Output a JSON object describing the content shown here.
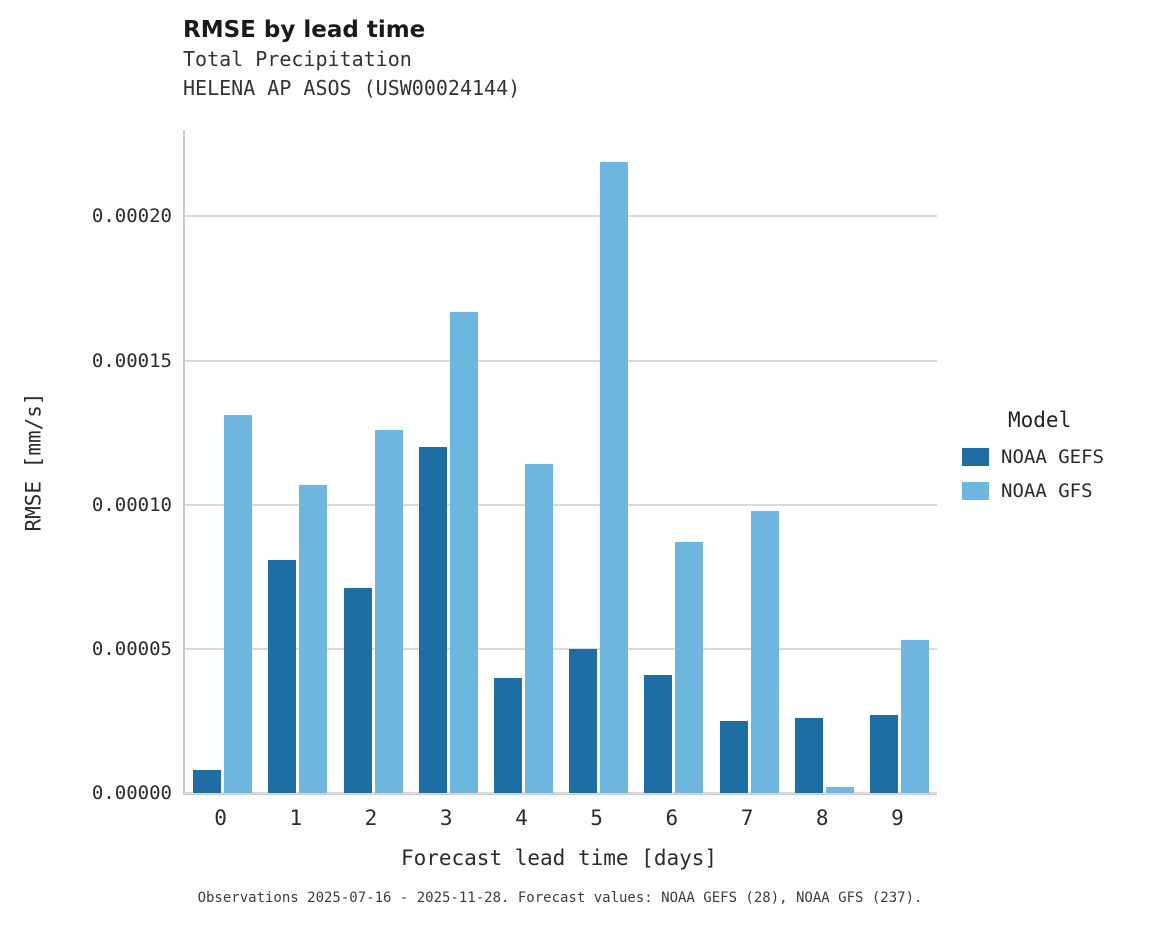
{
  "header": {
    "title": "RMSE by lead time",
    "subtitle1": "Total Precipitation",
    "subtitle2": "HELENA AP ASOS (USW00024144)"
  },
  "chart_data": {
    "type": "bar",
    "title": "RMSE by lead time",
    "subtitle": "Total Precipitation",
    "station": "HELENA AP ASOS (USW00024144)",
    "xlabel": "Forecast lead time [days]",
    "ylabel": "RMSE [mm/s]",
    "categories": [
      "0",
      "1",
      "2",
      "3",
      "4",
      "5",
      "6",
      "7",
      "8",
      "9"
    ],
    "yticks": [
      0,
      5e-05,
      0.0001,
      0.00015,
      0.0002
    ],
    "ytick_labels": [
      "0.00000",
      "0.00005",
      "0.00010",
      "0.00015",
      "0.00020"
    ],
    "ylim": [
      0,
      0.00023
    ],
    "grid": true,
    "legend_title": "Model",
    "legend_position": "right",
    "series": [
      {
        "name": "NOAA GEFS",
        "color": "#1c6ea4",
        "values": [
          8e-06,
          8.1e-05,
          7.1e-05,
          0.00012,
          4e-05,
          5e-05,
          4.1e-05,
          2.5e-05,
          2.6e-05,
          2.7e-05
        ]
      },
      {
        "name": "NOAA GFS",
        "color": "#6db7e0",
        "values": [
          0.000131,
          0.000107,
          0.000126,
          0.000167,
          0.000114,
          0.000219,
          8.7e-05,
          9.8e-05,
          2e-06,
          5.3e-05
        ]
      }
    ]
  },
  "caption": "Observations 2025-07-16 - 2025-11-28. Forecast values: NOAA GEFS (28), NOAA GFS (237)."
}
